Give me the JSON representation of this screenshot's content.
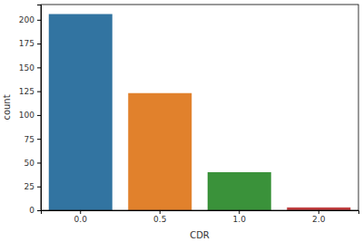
{
  "chart_data": {
    "type": "bar",
    "xlabel": "CDR",
    "ylabel": "count",
    "categories": [
      "0.0",
      "0.5",
      "1.0",
      "2.0"
    ],
    "values": [
      206,
      123,
      40,
      3
    ],
    "colors": [
      "#3274a1",
      "#e1812c",
      "#3a923a",
      "#c03d3e"
    ],
    "ylim": [
      0,
      216
    ],
    "yticks": [
      0,
      25,
      50,
      75,
      100,
      125,
      150,
      175,
      200
    ]
  }
}
